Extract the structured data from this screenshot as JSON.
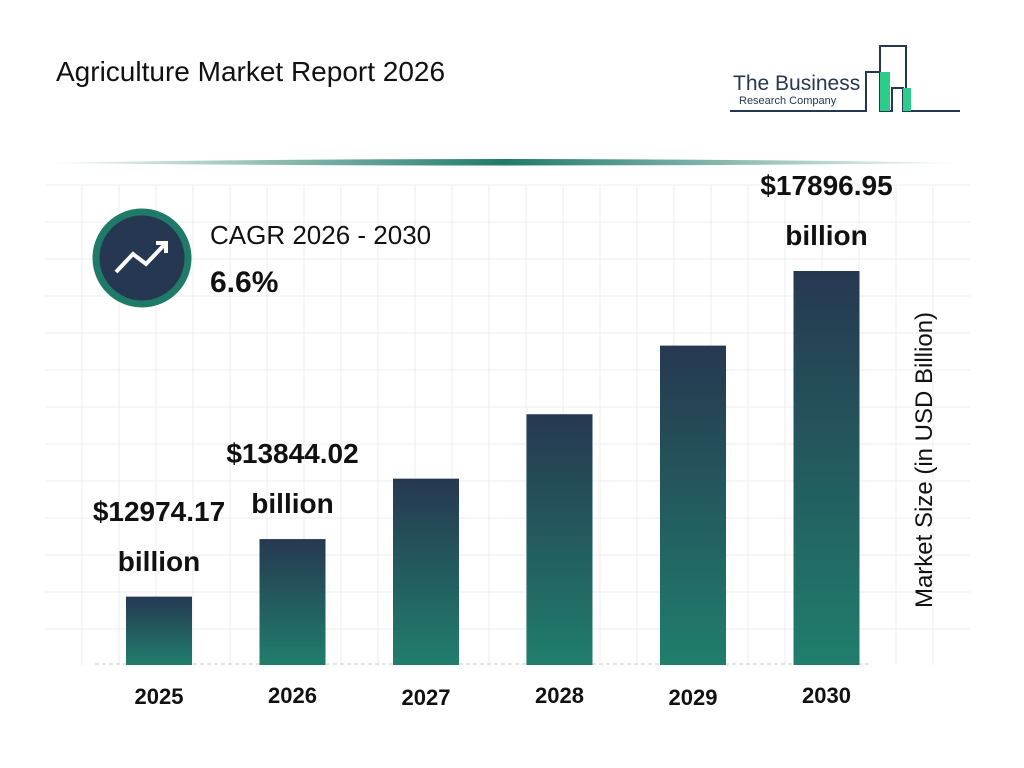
{
  "chart_data": {
    "type": "bar",
    "title": "Agriculture Market Report 2026",
    "categories": [
      "2025",
      "2026",
      "2027",
      "2028",
      "2029",
      "2030"
    ],
    "values": [
      12974.17,
      13844.02,
      14757.73,
      15731.74,
      16769.04,
      17896.95
    ],
    "value_labels": [
      "$12974.17 billion",
      "$13844.02 billion",
      null,
      null,
      null,
      "$17896.95 billion"
    ],
    "y_label": "Market Size (in USD Billion)",
    "colors": [
      "#263851",
      "#207e6c"
    ]
  },
  "cagr": {
    "label": "CAGR 2026 - 2030",
    "value": "6.6%"
  },
  "logo": {
    "line1": "The Business",
    "line2": "Research Company"
  }
}
